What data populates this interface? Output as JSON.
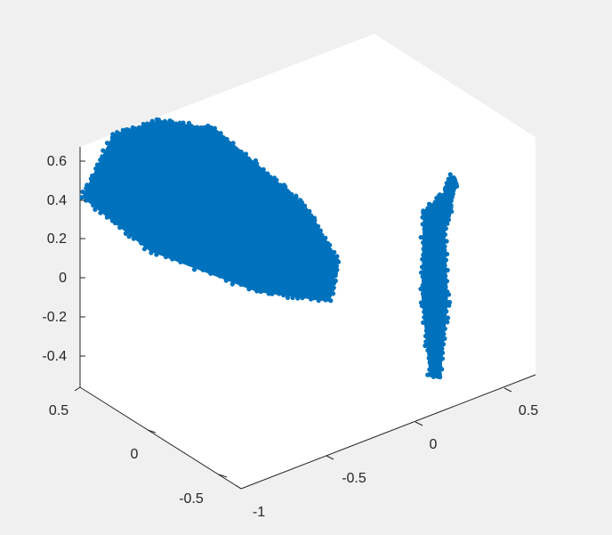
{
  "chart_data": {
    "type": "scatter",
    "view": "3d",
    "title": "",
    "xlabel": "",
    "ylabel": "",
    "zlabel": "",
    "grid": false,
    "legend": false,
    "marker_color": "#0072bd",
    "background_color": "#ffffff",
    "figure_color": "#f0f0f0",
    "x_axis": {
      "ticks": [
        {
          "value": -1,
          "label": "-1"
        },
        {
          "value": -0.5,
          "label": "-0.5"
        },
        {
          "value": 0,
          "label": "0"
        },
        {
          "value": 0.5,
          "label": "0.5"
        }
      ]
    },
    "y_axis": {
      "ticks": [
        {
          "value": 0.5,
          "label": "0.5"
        },
        {
          "value": 0,
          "label": "0"
        },
        {
          "value": -0.5,
          "label": "-0.5"
        }
      ]
    },
    "z_axis": {
      "ticks": [
        {
          "value": 0.6,
          "label": "0.6"
        },
        {
          "value": 0.4,
          "label": "0.4"
        },
        {
          "value": 0.2,
          "label": "0.2"
        },
        {
          "value": 0,
          "label": "0"
        },
        {
          "value": -0.2,
          "label": "-0.2"
        },
        {
          "value": -0.4,
          "label": "-0.4"
        }
      ]
    },
    "series": [
      {
        "outline": [
          [
            -0.95,
            0.55,
            0.38
          ],
          [
            -0.75,
            0.6,
            0.6
          ],
          [
            -0.55,
            0.55,
            0.62
          ],
          [
            -0.35,
            0.45,
            0.55
          ],
          [
            -0.25,
            0.2,
            0.38
          ],
          [
            -0.2,
            0.05,
            0.28
          ],
          [
            -0.18,
            -0.1,
            0.1
          ],
          [
            -0.3,
            -0.2,
            -0.02
          ],
          [
            -0.55,
            -0.05,
            0.05
          ],
          [
            -0.85,
            0.25,
            0.22
          ]
        ]
      },
      {
        "outline": [
          [
            0.05,
            -0.35,
            0.38
          ],
          [
            0.2,
            -0.3,
            0.4
          ],
          [
            0.4,
            -0.1,
            0.3
          ],
          [
            0.55,
            0.05,
            0.12
          ],
          [
            0.45,
            0.0,
            -0.05
          ],
          [
            0.3,
            -0.2,
            -0.25
          ],
          [
            0.1,
            -0.4,
            -0.45
          ],
          [
            0.0,
            -0.45,
            -0.38
          ],
          [
            0.0,
            -0.4,
            0.0
          ]
        ]
      }
    ]
  }
}
